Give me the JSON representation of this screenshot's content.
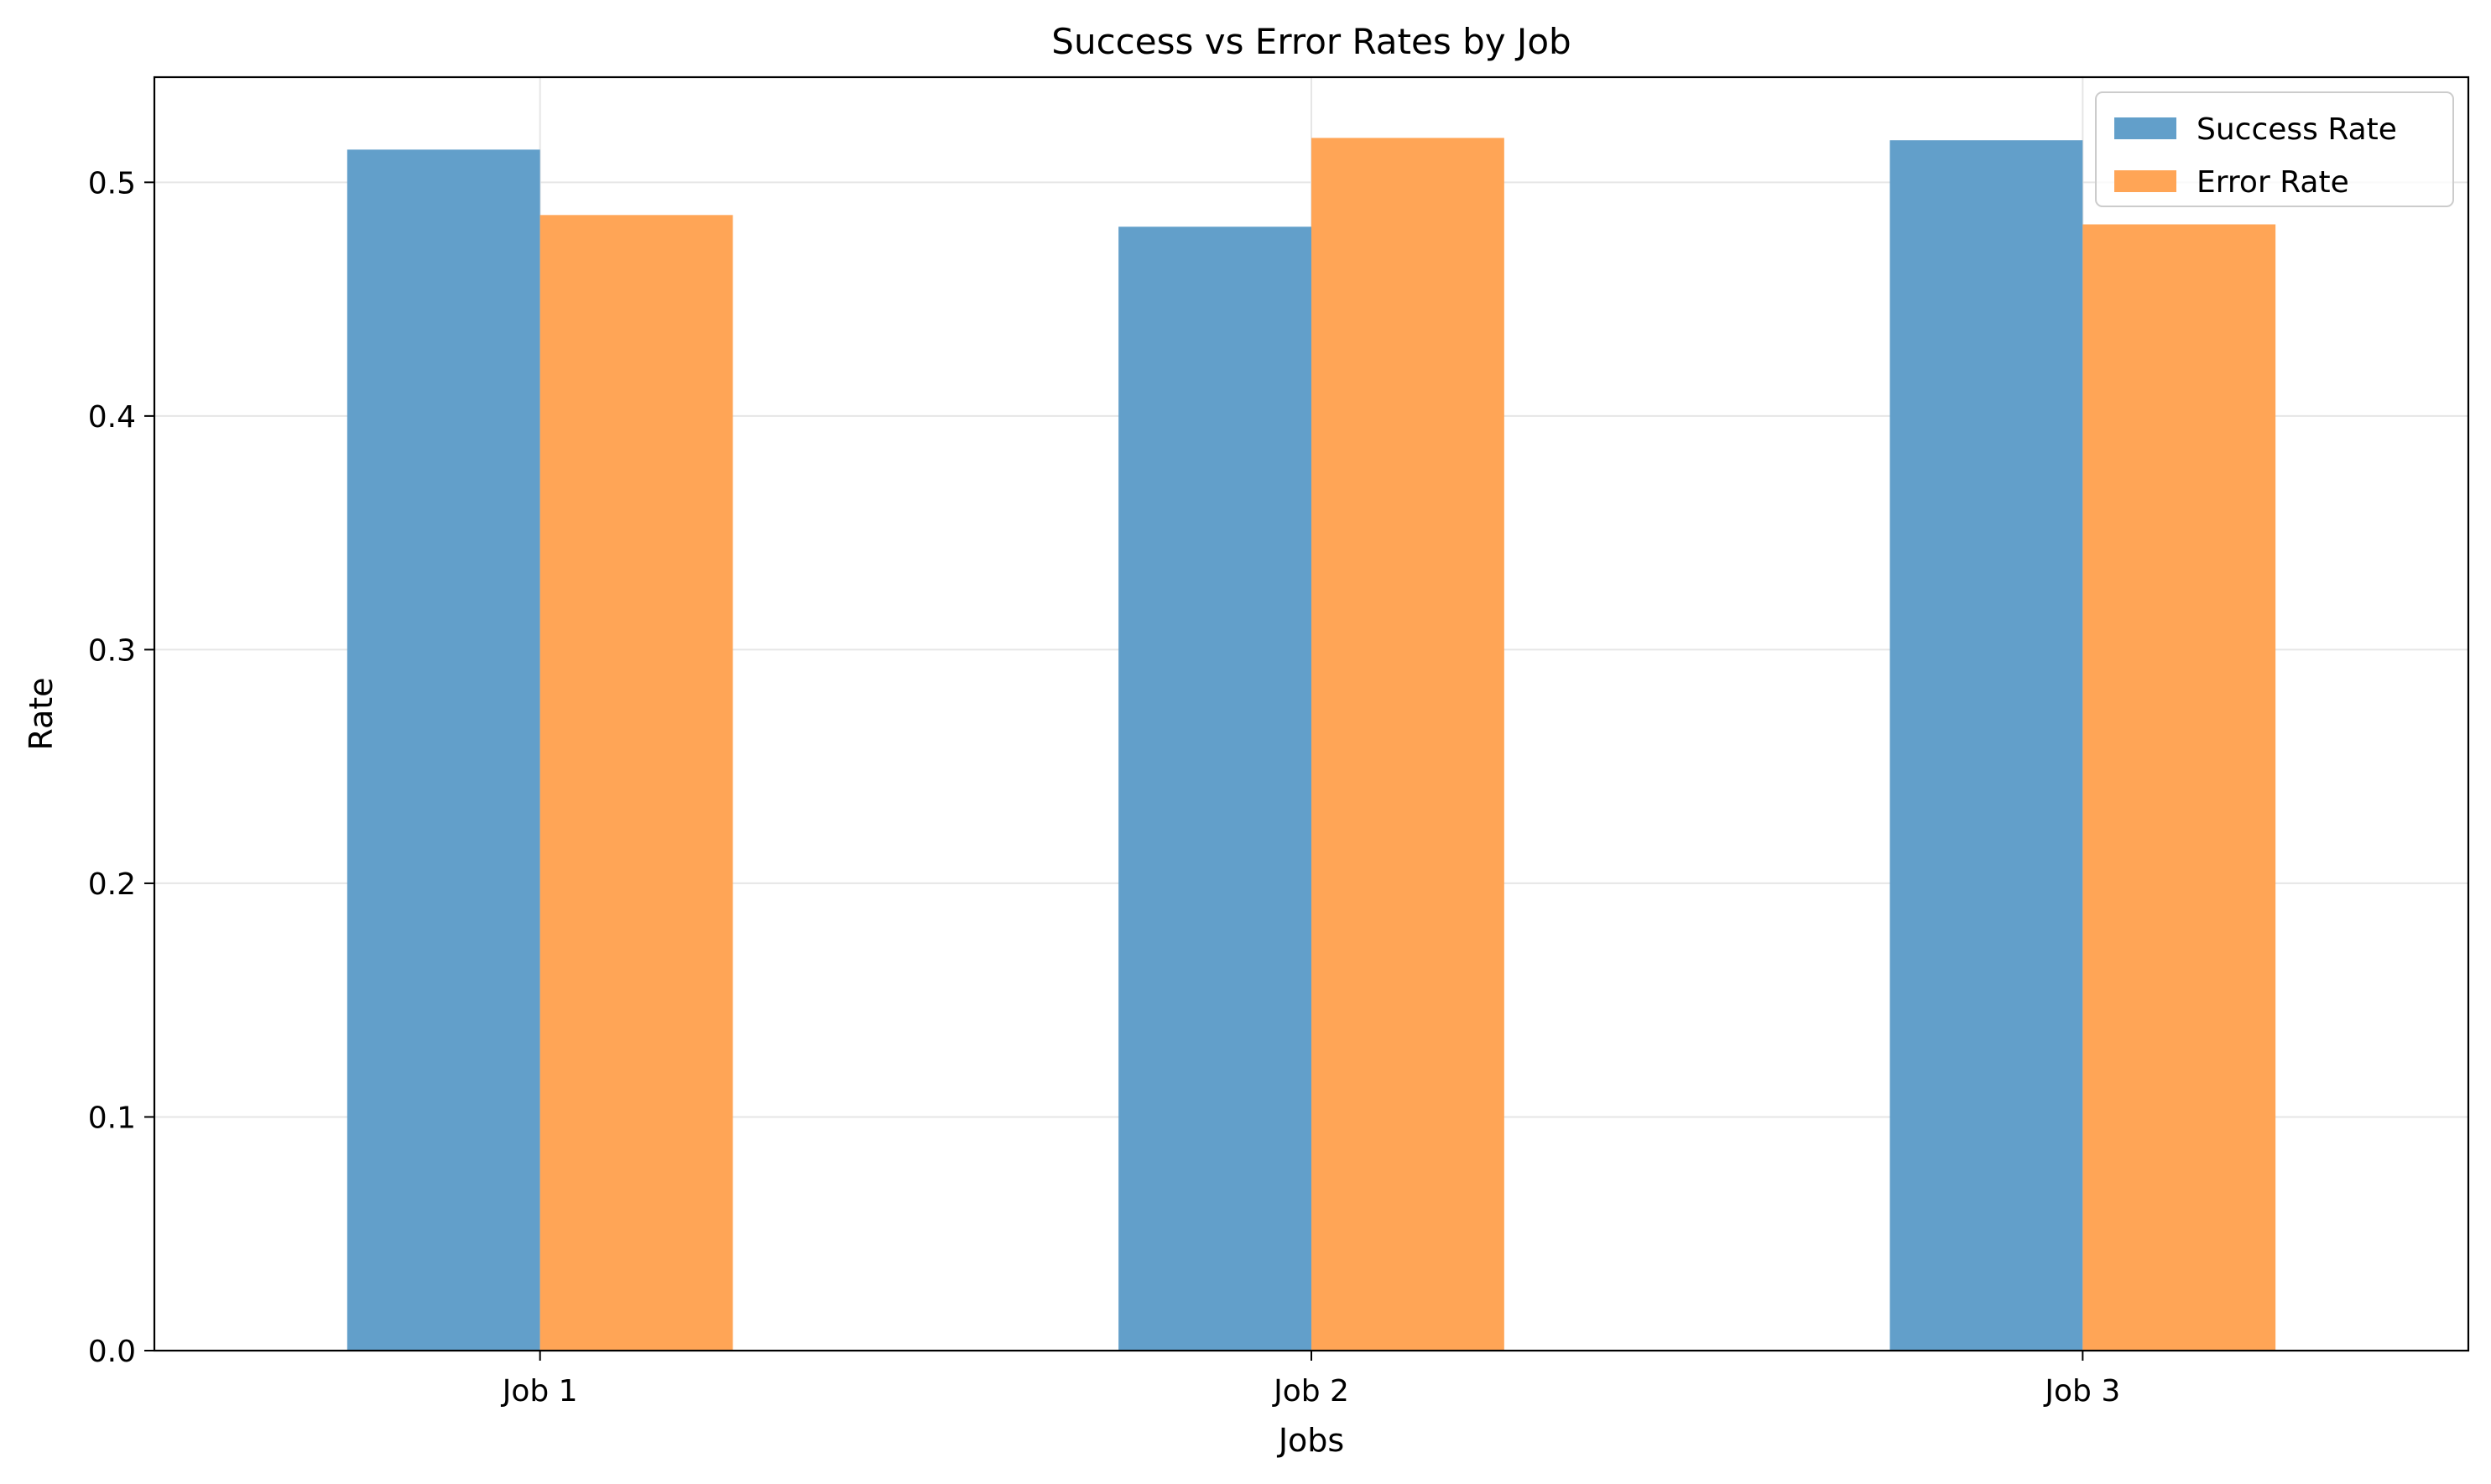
{
  "chart_data": {
    "type": "bar",
    "title": "Success vs Error Rates by Job",
    "xlabel": "Jobs",
    "ylabel": "Rate",
    "categories": [
      "Job 1",
      "Job 2",
      "Job 3"
    ],
    "series": [
      {
        "name": "Success Rate",
        "values": [
          0.514,
          0.481,
          0.518
        ],
        "color": "#629fca"
      },
      {
        "name": "Error Rate",
        "values": [
          0.486,
          0.519,
          0.482
        ],
        "color": "#ffa556"
      }
    ],
    "ylim": [
      0,
      0.545
    ],
    "yticks": [
      0.0,
      0.1,
      0.2,
      0.3,
      0.4,
      0.5
    ],
    "ytick_labels": [
      "0.0",
      "0.1",
      "0.2",
      "0.3",
      "0.4",
      "0.5"
    ],
    "grid": true,
    "grid_color": "#e6e6e6",
    "legend_placement": "top-right"
  }
}
